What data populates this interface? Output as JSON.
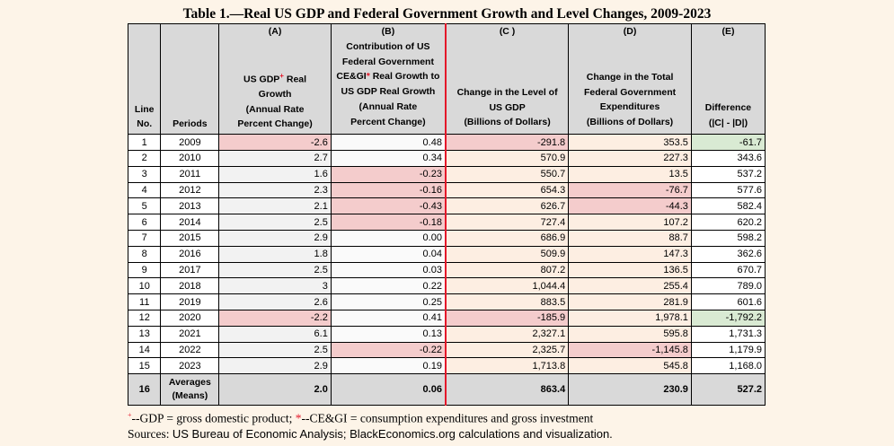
{
  "title": "Table 1.—Real US GDP and Federal Government Growth and Level Changes, 2009-2023",
  "headers": {
    "line": "Line\nNo.",
    "periods": "Periods",
    "a_letter": "(A)",
    "a_pre": "US GDP",
    "a_mark": "+",
    "a_post": " Real\nGrowth\n(Annual Rate\nPercent Change)",
    "b_letter": "(B)",
    "b_pre": "Contribution of US\nFederal Government\nCE&GI",
    "b_mark": "*",
    "b_post": " Real Growth to\nUS GDP Real Growth\n(Annual Rate\nPercent Change)",
    "c_letter": "(C )",
    "c_text": "Change in the Level of\nUS GDP\n(Billions of Dollars)",
    "d_letter": "(D)",
    "d_text": "Change in the Total\nFederal Government\nExpenditures\n(Billions of Dollars)",
    "e_letter": "(E)",
    "e_text": "Difference\n(|C| - |D|)"
  },
  "rows": [
    {
      "line": "1",
      "period": "2009",
      "a": "-2.6",
      "b": "0.48",
      "c": "-291.8",
      "d": "353.5",
      "e": "-61.7"
    },
    {
      "line": "2",
      "period": "2010",
      "a": "2.7",
      "b": "0.34",
      "c": "570.9",
      "d": "227.3",
      "e": "343.6"
    },
    {
      "line": "3",
      "period": "2011",
      "a": "1.6",
      "b": "-0.23",
      "c": "550.7",
      "d": "13.5",
      "e": "537.2"
    },
    {
      "line": "4",
      "period": "2012",
      "a": "2.3",
      "b": "-0.16",
      "c": "654.3",
      "d": "-76.7",
      "e": "577.6"
    },
    {
      "line": "5",
      "period": "2013",
      "a": "2.1",
      "b": "-0.43",
      "c": "626.7",
      "d": "-44.3",
      "e": "582.4"
    },
    {
      "line": "6",
      "period": "2014",
      "a": "2.5",
      "b": "-0.18",
      "c": "727.4",
      "d": "107.2",
      "e": "620.2"
    },
    {
      "line": "7",
      "period": "2015",
      "a": "2.9",
      "b": "0.00",
      "c": "686.9",
      "d": "88.7",
      "e": "598.2"
    },
    {
      "line": "8",
      "period": "2016",
      "a": "1.8",
      "b": "0.04",
      "c": "509.9",
      "d": "147.3",
      "e": "362.6"
    },
    {
      "line": "9",
      "period": "2017",
      "a": "2.5",
      "b": "0.03",
      "c": "807.2",
      "d": "136.5",
      "e": "670.7"
    },
    {
      "line": "10",
      "period": "2018",
      "a": "3",
      "b": "0.22",
      "c": "1,044.4",
      "d": "255.4",
      "e": "789.0"
    },
    {
      "line": "11",
      "period": "2019",
      "a": "2.6",
      "b": "0.25",
      "c": "883.5",
      "d": "281.9",
      "e": "601.6"
    },
    {
      "line": "12",
      "period": "2020",
      "a": "-2.2",
      "b": "0.41",
      "c": "-185.9",
      "d": "1,978.1",
      "e": "-1,792.2"
    },
    {
      "line": "13",
      "period": "2021",
      "a": "6.1",
      "b": "0.13",
      "c": "2,327.1",
      "d": "595.8",
      "e": "1,731.3"
    },
    {
      "line": "14",
      "period": "2022",
      "a": "2.5",
      "b": "-0.22",
      "c": "2,325.7",
      "d": "-1,145.8",
      "e": "1,179.9"
    },
    {
      "line": "15",
      "period": "2023",
      "a": "2.9",
      "b": "0.19",
      "c": "1,713.8",
      "d": "545.8",
      "e": "1,168.0"
    }
  ],
  "averages": {
    "line": "16",
    "period": "Averages\n(Means)",
    "a": "2.0",
    "b": "0.06",
    "c": "863.4",
    "d": "230.9",
    "e": "527.2"
  },
  "notes": {
    "mark1": "+",
    "text1": "--GDP = gross domestic product; ",
    "mark2": "*",
    "text2": "--CE&GI = consumption expenditures and gross investment",
    "source_label": "Sources: ",
    "source_rest": "US Bureau of Economic Analysis; BlackEconomics.org calculations and visualization."
  },
  "colors": {
    "background": "#fdf4e8",
    "header_fill": "#d9d9d9",
    "negative_fill": "#f4cccc",
    "negative_difference_fill": "#d9ead3",
    "accent_red": "#e4182a"
  }
}
